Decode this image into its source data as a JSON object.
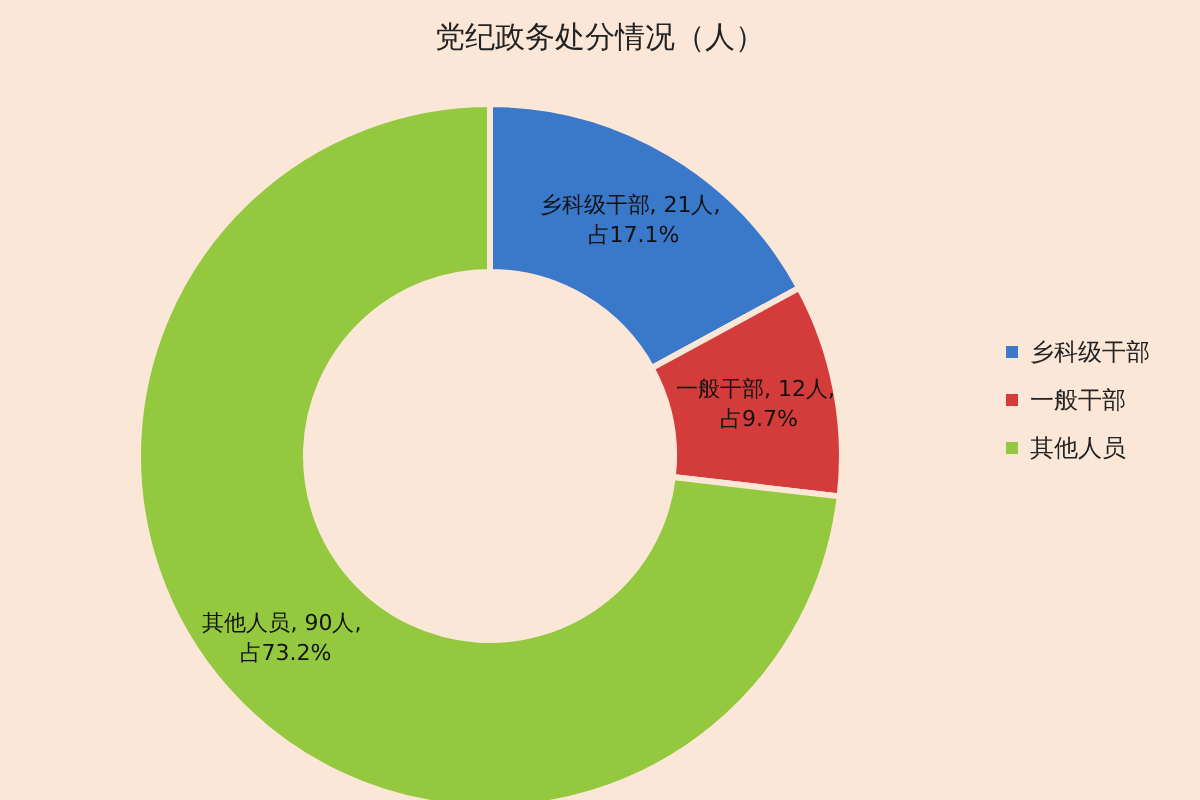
{
  "chart_data": {
    "type": "donut",
    "title": "党纪政务处分情况（人）",
    "categories": [
      "乡科级干部",
      "一般干部",
      "其他人员"
    ],
    "values": [
      21,
      12,
      90
    ],
    "colors": [
      "#3a78c9",
      "#d33c3a",
      "#93c83f"
    ],
    "value_labels": [
      "乡科级干部, 21人, 占17.1%",
      "一般干部, 12人, 占9.7%",
      "其他人员, 90人, 占73.2%"
    ],
    "legend": "right"
  }
}
